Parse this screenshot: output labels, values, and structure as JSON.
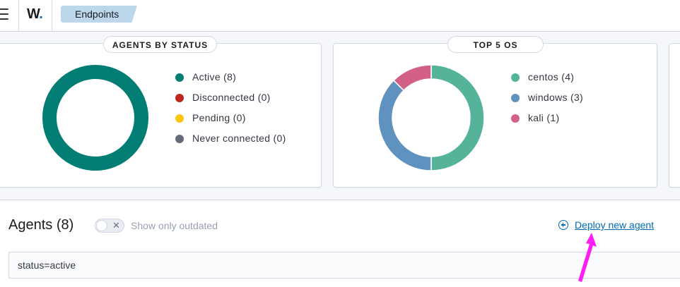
{
  "header": {
    "logo_text": "W",
    "logo_dot": ".",
    "breadcrumb": "Endpoints"
  },
  "status_panel": {
    "title": "AGENTS BY STATUS",
    "items": [
      {
        "label": "Active (8)",
        "value": 8,
        "color": "#017d73"
      },
      {
        "label": "Disconnected (0)",
        "value": 0,
        "color": "#bd271e"
      },
      {
        "label": "Pending (0)",
        "value": 0,
        "color": "#fec514"
      },
      {
        "label": "Never connected (0)",
        "value": 0,
        "color": "#646a77"
      }
    ]
  },
  "os_panel": {
    "title": "TOP 5 OS",
    "items": [
      {
        "label": "centos (4)",
        "value": 4,
        "color": "#54b399"
      },
      {
        "label": "windows (3)",
        "value": 3,
        "color": "#6092c0"
      },
      {
        "label": "kali (1)",
        "value": 1,
        "color": "#d36086"
      }
    ]
  },
  "agents": {
    "title": "Agents (8)",
    "toggle_label": "Show only outdated",
    "toggle_icon": "x-icon",
    "deploy_label": "Deploy new agent",
    "deploy_icon": "plus-circle-icon",
    "search_value": "status=active"
  },
  "annotation": {
    "color": "#ff1df5"
  }
}
